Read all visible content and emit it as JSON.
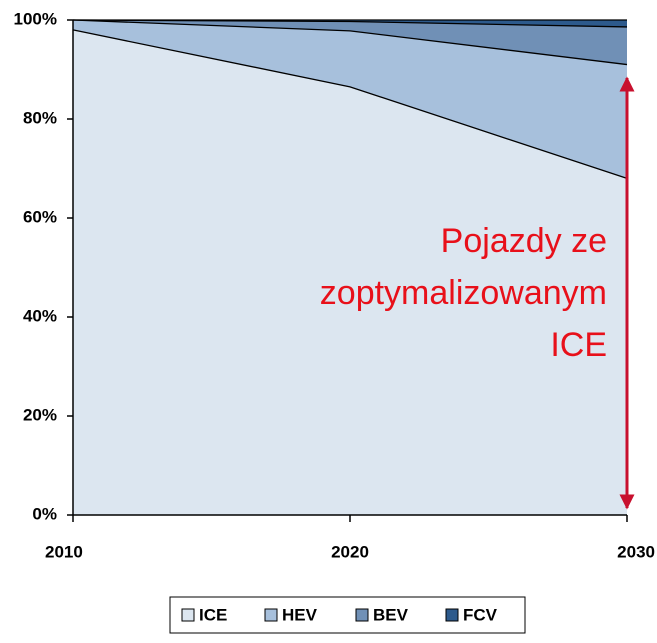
{
  "chart_data": {
    "type": "stacked_area",
    "x": [
      2010,
      2020,
      2030
    ],
    "xlim": [
      2010,
      2030
    ],
    "xticks": [
      2010,
      2020,
      2030
    ],
    "ylim": [
      0,
      100
    ],
    "yticks": [
      {
        "value": 0,
        "label": "0%"
      },
      {
        "value": 20,
        "label": "20%"
      },
      {
        "value": 40,
        "label": "40%"
      },
      {
        "value": 60,
        "label": "60%"
      },
      {
        "value": 80,
        "label": "80%"
      },
      {
        "value": 100,
        "label": "100%"
      }
    ],
    "series": [
      {
        "name": "ICE",
        "color": "#dce6f0",
        "values": [
          98,
          86.5,
          68
        ]
      },
      {
        "name": "HEV",
        "color": "#a7c0dc",
        "values": [
          2,
          11.3,
          23
        ]
      },
      {
        "name": "BEV",
        "color": "#7090b6",
        "values": [
          0,
          1.9,
          7.6
        ]
      },
      {
        "name": "FCV",
        "color": "#2d5a8c",
        "values": [
          0,
          0.3,
          1.4
        ]
      }
    ],
    "annotation": [
      "Pojazdy ze",
      "zoptymalizowanym",
      "ICE"
    ],
    "legend": "bottom"
  }
}
